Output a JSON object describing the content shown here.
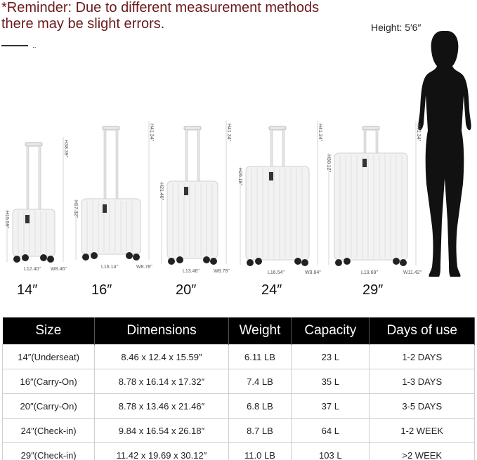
{
  "reminder": {
    "line1": "*Reminder: Due to different measurement methods",
    "line2": "there may be slight errors.",
    "dots": ".."
  },
  "person_height": "Height: 5′6″",
  "suitcases": [
    {
      "size": "14″",
      "total_height": "H38.39\"",
      "body_height": "H15.59\"",
      "length": "L12.40\"",
      "width": "W8.46\""
    },
    {
      "size": "16″",
      "total_height": "H41.34\"",
      "body_height": "H17.32\"",
      "length": "L16.14\"",
      "width": "W8.78\""
    },
    {
      "size": "20″",
      "total_height": "H41.34\"",
      "body_height": "H21.46\"",
      "length": "L13.46\"",
      "width": "W8.78\""
    },
    {
      "size": "24″",
      "total_height": "H41.34\"",
      "body_height": "H26.18\"",
      "length": "L16.54\"",
      "width": "W9.84\""
    },
    {
      "size": "29″",
      "total_height": "H41.34\"",
      "body_height": "H30.12\"",
      "length": "L19.69\"",
      "width": "W11.42\""
    }
  ],
  "table": {
    "headers": [
      "Size",
      "Dimensions",
      "Weight",
      "Capacity",
      "Days of use"
    ],
    "rows": [
      [
        "14″(Underseat)",
        "8.46 x 12.4 x 15.59″",
        "6.11 LB",
        "23 L",
        "1-2 DAYS"
      ],
      [
        "16″(Carry-On)",
        "8.78 x 16.14 x 17.32″",
        "7.4 LB",
        "35 L",
        "1-3 DAYS"
      ],
      [
        "20″(Carry-On)",
        "8.78 x 13.46 x 21.46″",
        "6.8 LB",
        "37 L",
        "3-5 DAYS"
      ],
      [
        "24″(Check-in)",
        "9.84 x 16.54 x 26.18″",
        "8.7 LB",
        "64 L",
        "1-2 WEEK"
      ],
      [
        "29″(Check-in)",
        "11.42 x 19.69 x 30.12″",
        "11.0 LB",
        "103 L",
        ">2 WEEK"
      ]
    ]
  },
  "colors": {
    "reminder": "#6b1a1a",
    "header_bg": "#000000",
    "suitcase": "#f2f2f2"
  }
}
